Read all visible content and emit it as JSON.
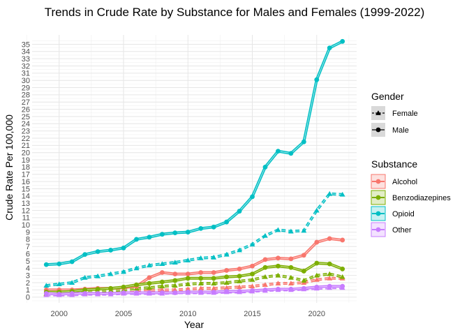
{
  "chart_data": {
    "type": "line",
    "title": "Trends in Crude Rate by Substance for Males and Females (1999-2022)",
    "xlabel": "Year",
    "ylabel": "Crude Rate Per 100,000",
    "xlim": [
      1997.9,
      2023.1
    ],
    "ylim": [
      -0.8,
      36.3
    ],
    "x_ticks": [
      2000,
      2005,
      2010,
      2015,
      2020
    ],
    "y_ticks": [
      0,
      1,
      2,
      3,
      4,
      5,
      6,
      7,
      8,
      9,
      10,
      11,
      12,
      13,
      14,
      15,
      16,
      17,
      18,
      19,
      20,
      21,
      22,
      23,
      24,
      25,
      26,
      27,
      28,
      29,
      30,
      31,
      32,
      33,
      34,
      35
    ],
    "grid": true,
    "legend_position": "right",
    "x": [
      1999,
      2000,
      2001,
      2002,
      2003,
      2004,
      2005,
      2006,
      2007,
      2008,
      2009,
      2010,
      2011,
      2012,
      2013,
      2014,
      2015,
      2016,
      2017,
      2018,
      2019,
      2020,
      2021,
      2022
    ],
    "legends": [
      {
        "title": "Gender",
        "entries": [
          {
            "label": "Female",
            "linetype": "dashed",
            "shape": "triangle"
          },
          {
            "label": "Male",
            "linetype": "solid",
            "shape": "circle"
          }
        ]
      },
      {
        "title": "Substance",
        "entries": [
          {
            "label": "Alcohol",
            "color": "#F8766D"
          },
          {
            "label": "Benzodiazepines",
            "color": "#7CAE00"
          },
          {
            "label": "Opioid",
            "color": "#00BFC4"
          },
          {
            "label": "Other",
            "color": "#C77CFF"
          }
        ]
      }
    ],
    "series": [
      {
        "substance": "Opioid",
        "gender": "Male",
        "color": "#00BFC4",
        "linetype": "solid",
        "shape": "circle",
        "values": [
          4.5,
          4.6,
          4.9,
          5.9,
          6.3,
          6.5,
          6.8,
          8.0,
          8.3,
          8.7,
          8.9,
          9.0,
          9.5,
          9.7,
          10.4,
          11.9,
          13.9,
          18.0,
          20.2,
          19.9,
          21.5,
          30.1,
          34.5,
          35.4
        ]
      },
      {
        "substance": "Opioid",
        "gender": "Female",
        "color": "#00BFC4",
        "linetype": "dashed",
        "shape": "triangle",
        "values": [
          1.6,
          1.8,
          2.0,
          2.7,
          2.9,
          3.2,
          3.5,
          4.0,
          4.4,
          4.6,
          4.8,
          5.1,
          5.4,
          5.5,
          5.9,
          6.5,
          7.3,
          8.5,
          9.3,
          9.1,
          9.2,
          12.0,
          14.3,
          14.2
        ]
      },
      {
        "substance": "Alcohol",
        "gender": "Male",
        "color": "#F8766D",
        "linetype": "solid",
        "shape": "circle",
        "values": [
          1.0,
          1.0,
          1.0,
          1.1,
          1.2,
          1.2,
          1.3,
          1.5,
          2.7,
          3.4,
          3.2,
          3.2,
          3.4,
          3.4,
          3.7,
          3.9,
          4.3,
          5.2,
          5.4,
          5.3,
          5.8,
          7.6,
          8.1,
          7.9
        ]
      },
      {
        "substance": "Alcohol",
        "gender": "Female",
        "color": "#F8766D",
        "linetype": "dashed",
        "shape": "triangle",
        "values": [
          0.4,
          0.4,
          0.5,
          0.5,
          0.5,
          0.6,
          0.6,
          0.7,
          0.9,
          1.0,
          1.0,
          1.1,
          1.2,
          1.2,
          1.3,
          1.4,
          1.5,
          1.7,
          1.9,
          1.9,
          2.0,
          2.4,
          2.6,
          2.6
        ]
      },
      {
        "substance": "Benzodiazepines",
        "gender": "Male",
        "color": "#7CAE00",
        "linetype": "solid",
        "shape": "circle",
        "values": [
          0.7,
          0.7,
          0.8,
          1.0,
          1.1,
          1.2,
          1.4,
          1.7,
          1.9,
          2.1,
          2.3,
          2.6,
          2.6,
          2.6,
          2.8,
          2.9,
          3.2,
          4.1,
          4.3,
          4.1,
          3.6,
          4.7,
          4.6,
          3.9
        ]
      },
      {
        "substance": "Benzodiazepines",
        "gender": "Female",
        "color": "#7CAE00",
        "linetype": "dashed",
        "shape": "triangle",
        "values": [
          0.5,
          0.5,
          0.6,
          0.7,
          0.8,
          0.9,
          1.0,
          1.2,
          1.3,
          1.5,
          1.6,
          1.8,
          1.9,
          1.9,
          2.0,
          2.2,
          2.4,
          2.8,
          3.0,
          2.7,
          2.3,
          3.0,
          3.2,
          2.8
        ]
      },
      {
        "substance": "Other",
        "gender": "Male",
        "color": "#C77CFF",
        "linetype": "solid",
        "shape": "circle",
        "values": [
          0.5,
          0.4,
          0.5,
          0.5,
          0.5,
          0.5,
          0.6,
          0.6,
          0.6,
          0.6,
          0.6,
          0.7,
          0.7,
          0.7,
          0.8,
          0.8,
          0.9,
          1.0,
          1.1,
          1.1,
          1.2,
          1.4,
          1.5,
          1.5
        ]
      },
      {
        "substance": "Other",
        "gender": "Female",
        "color": "#C77CFF",
        "linetype": "dashed",
        "shape": "triangle",
        "values": [
          0.3,
          0.3,
          0.3,
          0.4,
          0.4,
          0.4,
          0.5,
          0.5,
          0.5,
          0.5,
          0.6,
          0.6,
          0.6,
          0.6,
          0.7,
          0.7,
          0.8,
          0.9,
          1.0,
          1.0,
          1.1,
          1.2,
          1.3,
          1.3
        ]
      }
    ]
  }
}
